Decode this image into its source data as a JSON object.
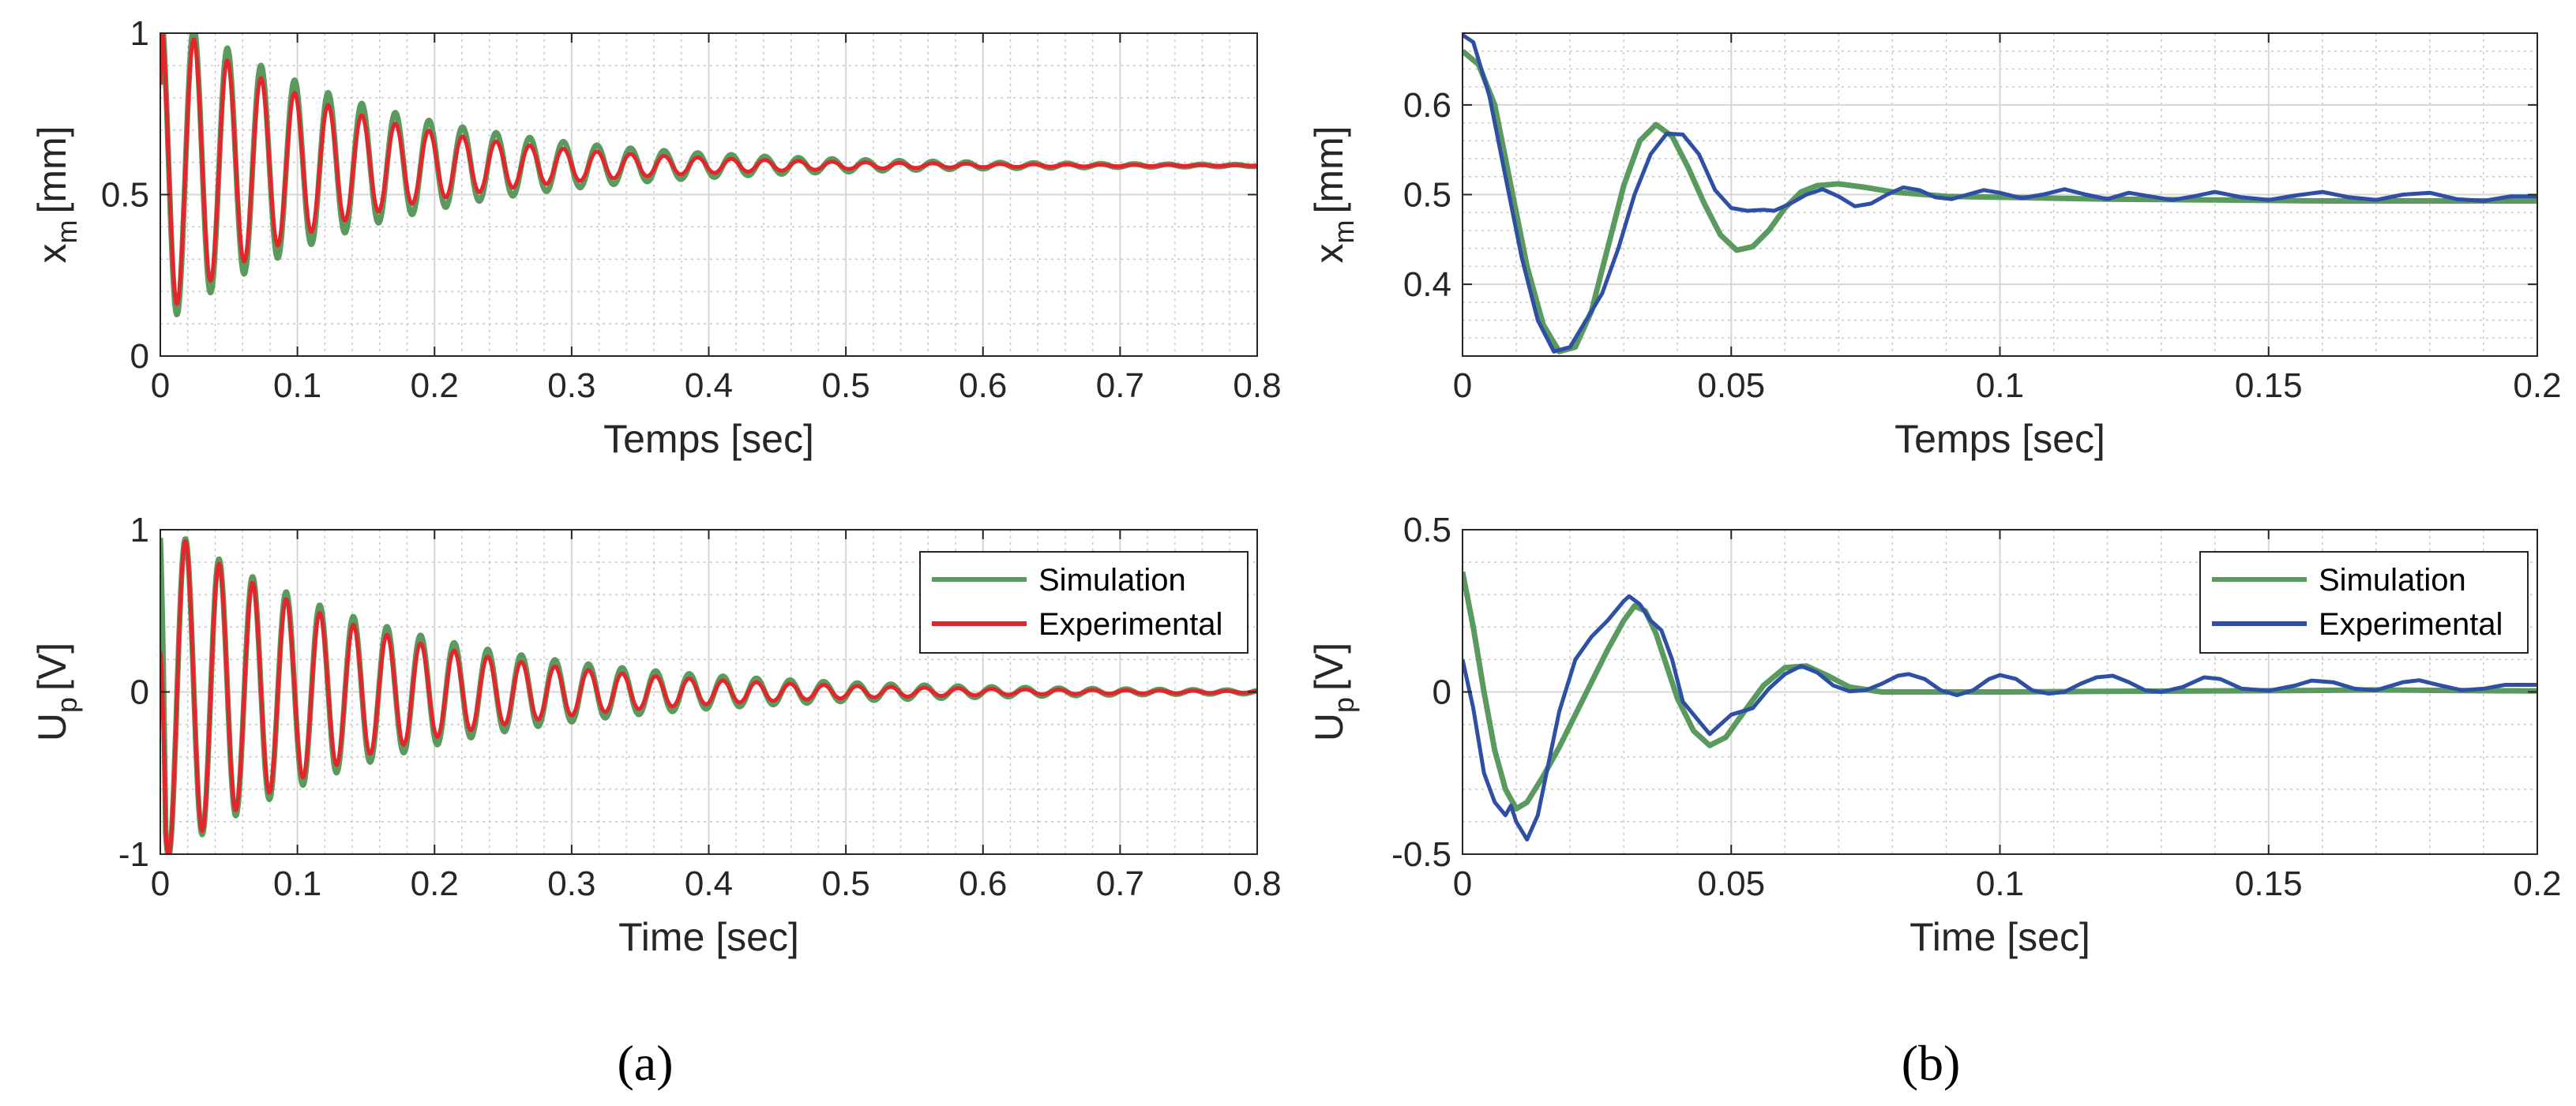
{
  "colors": {
    "simulation_a": "#5b9a5f",
    "experimental_a": "#e3262b",
    "simulation_b": "#5b9a5f",
    "experimental_b": "#2e4fa3",
    "grid_major": "#d6d6d6",
    "grid_minor": "#c8c8c8",
    "axis": "#262626"
  },
  "chart_data": [
    {
      "id": "a_top",
      "type": "line",
      "panel": "a",
      "xlabel": "Temps [sec]",
      "ylabel_main": "x",
      "ylabel_sub": "m",
      "ylabel_unit": "[mm]",
      "xlim": [
        0,
        0.8
      ],
      "ylim": [
        0,
        1
      ],
      "xticks": [
        0,
        0.1,
        0.2,
        0.3,
        0.4,
        0.5,
        0.6,
        0.7,
        0.8
      ],
      "xtick_labels": [
        "0",
        "0.1",
        "0.2",
        "0.3",
        "0.4",
        "0.5",
        "0.6",
        "0.7",
        "0.8"
      ],
      "yticks": [
        0,
        0.5,
        1
      ],
      "ytick_labels": [
        "0",
        "0.5",
        "1"
      ],
      "legend": null,
      "series": [
        {
          "name": "Simulation",
          "color_key": "simulation_a",
          "model": {
            "kind": "damped",
            "y0": 0.84,
            "baseline": 0.59,
            "amp": 0.5,
            "decay": 6.5,
            "period": 0.0245
          }
        },
        {
          "name": "Experimental",
          "color_key": "experimental_a",
          "model": {
            "kind": "damped",
            "y0": 0.84,
            "baseline": 0.59,
            "amp": 0.47,
            "decay": 7.5,
            "period": 0.0245
          }
        }
      ]
    },
    {
      "id": "a_bottom",
      "type": "line",
      "panel": "a",
      "xlabel": "Time [sec]",
      "ylabel_main": "U",
      "ylabel_sub": "p",
      "ylabel_unit": "[V]",
      "xlim": [
        0,
        0.8
      ],
      "ylim": [
        -1,
        1
      ],
      "xticks": [
        0,
        0.1,
        0.2,
        0.3,
        0.4,
        0.5,
        0.6,
        0.7,
        0.8
      ],
      "xtick_labels": [
        "0",
        "0.1",
        "0.2",
        "0.3",
        "0.4",
        "0.5",
        "0.6",
        "0.7",
        "0.8"
      ],
      "yticks": [
        -1,
        0,
        1
      ],
      "ytick_labels": [
        "-1",
        "0",
        "1"
      ],
      "legend": {
        "entries": [
          "Simulation",
          "Experimental"
        ],
        "location": "top-right"
      },
      "series": [
        {
          "name": "Simulation",
          "color_key": "simulation_a",
          "model": {
            "kind": "velocity",
            "y0": 0.95,
            "amp": 1.05,
            "decay": 5.8,
            "period": 0.0245
          }
        },
        {
          "name": "Experimental",
          "color_key": "experimental_a",
          "model": {
            "kind": "velocity",
            "y0": 0.25,
            "amp": 1.05,
            "decay": 6.6,
            "period": 0.0245
          }
        }
      ]
    },
    {
      "id": "b_top",
      "type": "line",
      "panel": "b",
      "xlabel": "Temps [sec]",
      "ylabel_main": "x",
      "ylabel_sub": "m",
      "ylabel_unit": "[mm]",
      "xlim": [
        0,
        0.2
      ],
      "ylim": [
        0.32,
        0.68
      ],
      "xticks": [
        0,
        0.05,
        0.1,
        0.15,
        0.2
      ],
      "xtick_labels": [
        "0",
        "0.05",
        "0.1",
        "0.15",
        "0.2"
      ],
      "yticks": [
        0.4,
        0.5,
        0.6
      ],
      "ytick_labels": [
        "0.4",
        "0.5",
        "0.6"
      ],
      "legend": null,
      "series": [
        {
          "name": "Simulation",
          "color_key": "simulation_b",
          "points": [
            [
              0,
              0.66
            ],
            [
              0.003,
              0.645
            ],
            [
              0.006,
              0.6
            ],
            [
              0.009,
              0.51
            ],
            [
              0.012,
              0.42
            ],
            [
              0.015,
              0.355
            ],
            [
              0.018,
              0.325
            ],
            [
              0.021,
              0.33
            ],
            [
              0.024,
              0.37
            ],
            [
              0.027,
              0.44
            ],
            [
              0.03,
              0.51
            ],
            [
              0.033,
              0.56
            ],
            [
              0.036,
              0.578
            ],
            [
              0.039,
              0.565
            ],
            [
              0.042,
              0.53
            ],
            [
              0.045,
              0.49
            ],
            [
              0.048,
              0.455
            ],
            [
              0.051,
              0.438
            ],
            [
              0.054,
              0.442
            ],
            [
              0.057,
              0.46
            ],
            [
              0.06,
              0.485
            ],
            [
              0.063,
              0.503
            ],
            [
              0.066,
              0.51
            ],
            [
              0.07,
              0.512
            ],
            [
              0.075,
              0.508
            ],
            [
              0.08,
              0.503
            ],
            [
              0.09,
              0.498
            ],
            [
              0.1,
              0.497
            ],
            [
              0.12,
              0.495
            ],
            [
              0.14,
              0.494
            ],
            [
              0.16,
              0.493
            ],
            [
              0.18,
              0.493
            ],
            [
              0.2,
              0.493
            ]
          ]
        },
        {
          "name": "Experimental",
          "color_key": "experimental_b",
          "points": [
            [
              0,
              0.678
            ],
            [
              0.002,
              0.67
            ],
            [
              0.005,
              0.61
            ],
            [
              0.008,
              0.52
            ],
            [
              0.011,
              0.43
            ],
            [
              0.014,
              0.36
            ],
            [
              0.017,
              0.325
            ],
            [
              0.02,
              0.33
            ],
            [
              0.023,
              0.36
            ],
            [
              0.026,
              0.39
            ],
            [
              0.029,
              0.44
            ],
            [
              0.032,
              0.5
            ],
            [
              0.035,
              0.545
            ],
            [
              0.038,
              0.568
            ],
            [
              0.041,
              0.567
            ],
            [
              0.044,
              0.545
            ],
            [
              0.047,
              0.505
            ],
            [
              0.05,
              0.485
            ],
            [
              0.053,
              0.482
            ],
            [
              0.056,
              0.483
            ],
            [
              0.058,
              0.482
            ],
            [
              0.061,
              0.49
            ],
            [
              0.064,
              0.5
            ],
            [
              0.067,
              0.506
            ],
            [
              0.07,
              0.498
            ],
            [
              0.073,
              0.487
            ],
            [
              0.076,
              0.49
            ],
            [
              0.079,
              0.5
            ],
            [
              0.082,
              0.508
            ],
            [
              0.085,
              0.505
            ],
            [
              0.088,
              0.497
            ],
            [
              0.091,
              0.495
            ],
            [
              0.094,
              0.5
            ],
            [
              0.097,
              0.505
            ],
            [
              0.1,
              0.502
            ],
            [
              0.104,
              0.496
            ],
            [
              0.108,
              0.5
            ],
            [
              0.112,
              0.506
            ],
            [
              0.116,
              0.5
            ],
            [
              0.12,
              0.495
            ],
            [
              0.124,
              0.502
            ],
            [
              0.128,
              0.498
            ],
            [
              0.132,
              0.494
            ],
            [
              0.136,
              0.498
            ],
            [
              0.14,
              0.503
            ],
            [
              0.145,
              0.497
            ],
            [
              0.15,
              0.494
            ],
            [
              0.155,
              0.499
            ],
            [
              0.16,
              0.503
            ],
            [
              0.165,
              0.497
            ],
            [
              0.17,
              0.494
            ],
            [
              0.175,
              0.5
            ],
            [
              0.18,
              0.502
            ],
            [
              0.185,
              0.495
            ],
            [
              0.19,
              0.493
            ],
            [
              0.195,
              0.498
            ],
            [
              0.2,
              0.498
            ]
          ]
        }
      ]
    },
    {
      "id": "b_bottom",
      "type": "line",
      "panel": "b",
      "xlabel": "Time [sec]",
      "ylabel_main": "U",
      "ylabel_sub": "p",
      "ylabel_unit": "[V]",
      "xlim": [
        0,
        0.2
      ],
      "ylim": [
        -0.5,
        0.5
      ],
      "xticks": [
        0,
        0.05,
        0.1,
        0.15,
        0.2
      ],
      "xtick_labels": [
        "0",
        "0.05",
        "0.1",
        "0.15",
        "0.2"
      ],
      "yticks": [
        -0.5,
        0,
        0.5
      ],
      "ytick_labels": [
        "-0.5",
        "0",
        "0.5"
      ],
      "legend": {
        "entries": [
          "Simulation",
          "Experimental"
        ],
        "location": "top-right"
      },
      "series": [
        {
          "name": "Simulation",
          "color_key": "simulation_b",
          "points": [
            [
              0,
              0.37
            ],
            [
              0.002,
              0.2
            ],
            [
              0.004,
              0.0
            ],
            [
              0.006,
              -0.18
            ],
            [
              0.008,
              -0.3
            ],
            [
              0.01,
              -0.36
            ],
            [
              0.012,
              -0.34
            ],
            [
              0.015,
              -0.26
            ],
            [
              0.018,
              -0.17
            ],
            [
              0.021,
              -0.07
            ],
            [
              0.024,
              0.03
            ],
            [
              0.027,
              0.13
            ],
            [
              0.03,
              0.22
            ],
            [
              0.032,
              0.265
            ],
            [
              0.034,
              0.25
            ],
            [
              0.036,
              0.18
            ],
            [
              0.038,
              0.08
            ],
            [
              0.04,
              -0.02
            ],
            [
              0.043,
              -0.12
            ],
            [
              0.046,
              -0.165
            ],
            [
              0.049,
              -0.14
            ],
            [
              0.052,
              -0.07
            ],
            [
              0.056,
              0.02
            ],
            [
              0.06,
              0.075
            ],
            [
              0.064,
              0.08
            ],
            [
              0.068,
              0.05
            ],
            [
              0.072,
              0.015
            ],
            [
              0.078,
              0.0
            ],
            [
              0.085,
              0.0
            ],
            [
              0.1,
              0.0
            ],
            [
              0.12,
              0.002
            ],
            [
              0.15,
              0.004
            ],
            [
              0.17,
              0.006
            ],
            [
              0.2,
              0.003
            ]
          ]
        },
        {
          "name": "Experimental",
          "color_key": "experimental_b",
          "points": [
            [
              0,
              0.1
            ],
            [
              0.002,
              -0.05
            ],
            [
              0.004,
              -0.25
            ],
            [
              0.006,
              -0.34
            ],
            [
              0.008,
              -0.38
            ],
            [
              0.009,
              -0.35
            ],
            [
              0.01,
              -0.4
            ],
            [
              0.012,
              -0.455
            ],
            [
              0.014,
              -0.38
            ],
            [
              0.016,
              -0.22
            ],
            [
              0.018,
              -0.06
            ],
            [
              0.021,
              0.1
            ],
            [
              0.024,
              0.17
            ],
            [
              0.027,
              0.22
            ],
            [
              0.03,
              0.28
            ],
            [
              0.031,
              0.295
            ],
            [
              0.033,
              0.27
            ],
            [
              0.035,
              0.22
            ],
            [
              0.037,
              0.19
            ],
            [
              0.039,
              0.1
            ],
            [
              0.041,
              -0.03
            ],
            [
              0.044,
              -0.09
            ],
            [
              0.046,
              -0.13
            ],
            [
              0.048,
              -0.1
            ],
            [
              0.05,
              -0.07
            ],
            [
              0.052,
              -0.06
            ],
            [
              0.054,
              -0.05
            ],
            [
              0.057,
              0.01
            ],
            [
              0.06,
              0.055
            ],
            [
              0.063,
              0.08
            ],
            [
              0.066,
              0.06
            ],
            [
              0.069,
              0.02
            ],
            [
              0.072,
              0.002
            ],
            [
              0.075,
              0.005
            ],
            [
              0.078,
              0.025
            ],
            [
              0.081,
              0.05
            ],
            [
              0.083,
              0.055
            ],
            [
              0.086,
              0.04
            ],
            [
              0.089,
              0.005
            ],
            [
              0.092,
              -0.01
            ],
            [
              0.095,
              0.005
            ],
            [
              0.098,
              0.04
            ],
            [
              0.1,
              0.052
            ],
            [
              0.103,
              0.04
            ],
            [
              0.106,
              0.005
            ],
            [
              0.109,
              -0.005
            ],
            [
              0.112,
              0.0
            ],
            [
              0.115,
              0.025
            ],
            [
              0.118,
              0.045
            ],
            [
              0.121,
              0.05
            ],
            [
              0.124,
              0.03
            ],
            [
              0.127,
              0.005
            ],
            [
              0.13,
              0.0
            ],
            [
              0.134,
              0.015
            ],
            [
              0.138,
              0.045
            ],
            [
              0.141,
              0.04
            ],
            [
              0.145,
              0.01
            ],
            [
              0.15,
              0.004
            ],
            [
              0.155,
              0.02
            ],
            [
              0.158,
              0.035
            ],
            [
              0.162,
              0.03
            ],
            [
              0.166,
              0.01
            ],
            [
              0.17,
              0.005
            ],
            [
              0.175,
              0.03
            ],
            [
              0.178,
              0.036
            ],
            [
              0.182,
              0.02
            ],
            [
              0.186,
              0.005
            ],
            [
              0.19,
              0.01
            ],
            [
              0.194,
              0.022
            ],
            [
              0.2,
              0.022
            ]
          ]
        }
      ]
    }
  ],
  "captions": {
    "a": "(a)",
    "b": "(b)"
  }
}
